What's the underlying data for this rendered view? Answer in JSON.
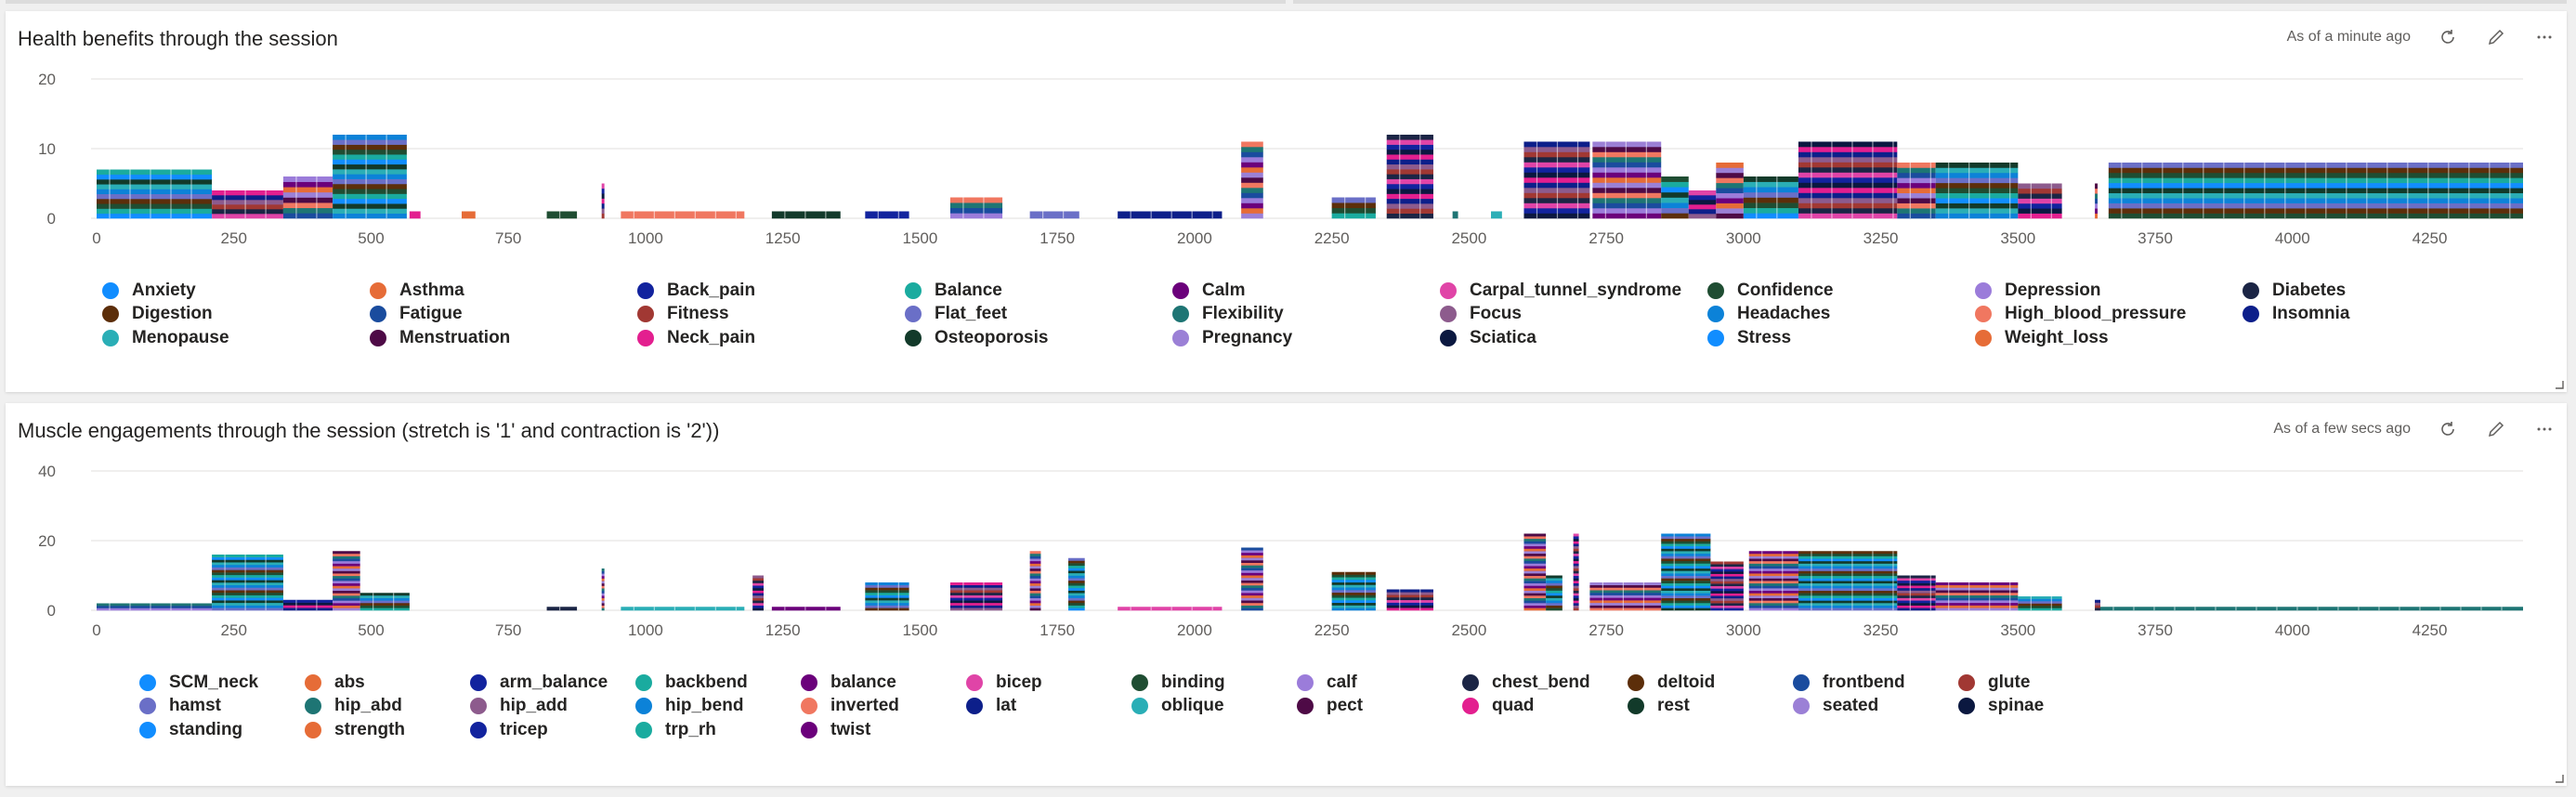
{
  "palette": [
    "#118DFF",
    "#E66C37",
    "#12239E",
    "#1AAB9F",
    "#6B007B",
    "#E044A7",
    "#1F4D32",
    "#9B7CDA",
    "#1B2545",
    "#5C2E0A",
    "#1A4C9E",
    "#A13833",
    "#6A6FC7",
    "#1E7574",
    "#8D5B8D",
    "#0C82D8",
    "#F07760",
    "#0D1F8A",
    "#2AAEB6",
    "#4E0A46",
    "#E31F8F",
    "#123A2A",
    "#9B80D6",
    "#0B1840"
  ],
  "tiles": [
    {
      "title": "Health benefits through the session",
      "timestamp": "As of a minute ago",
      "icons": [
        "refresh-icon",
        "edit-icon",
        "more-options-icon"
      ]
    },
    {
      "title": "Muscle engagements through the session (stretch is '1' and contraction is '2'))",
      "timestamp": "As of a few secs ago",
      "icons": [
        "refresh-icon",
        "edit-icon",
        "more-options-icon"
      ]
    }
  ],
  "chart_data": [
    {
      "type": "bar",
      "stacked": true,
      "x_ticks": [
        0,
        250,
        500,
        750,
        1000,
        1250,
        1500,
        1750,
        2000,
        2250,
        2500,
        2750,
        3000,
        3250,
        3500,
        3750,
        4000,
        4250
      ],
      "xlim": [
        0,
        4420
      ],
      "y_ticks": [
        0,
        10,
        20
      ],
      "ylim": [
        0,
        20
      ],
      "grid": true,
      "legend_position": "bottom",
      "series_names": [
        "Anxiety",
        "Asthma",
        "Back_pain",
        "Balance",
        "Calm",
        "Carpal_tunnel_syndrome",
        "Confidence",
        "Depression",
        "Diabetes",
        "Digestion",
        "Fatigue",
        "Fitness",
        "Flat_feet",
        "Flexibility",
        "Focus",
        "Headaches",
        "High_blood_pressure",
        "Insomnia",
        "Menopause",
        "Menstruation",
        "Neck_pain",
        "Osteoporosis",
        "Pregnancy",
        "Sciatica",
        "Stress",
        "Weight_loss"
      ],
      "segments": [
        {
          "x0": 0,
          "x1": 210,
          "total": 7
        },
        {
          "x0": 210,
          "x1": 340,
          "total": 4
        },
        {
          "x0": 340,
          "x1": 430,
          "total": 6
        },
        {
          "x0": 430,
          "x1": 565,
          "total": 12
        },
        {
          "x0": 570,
          "x1": 590,
          "total": 1
        },
        {
          "x0": 665,
          "x1": 690,
          "total": 1
        },
        {
          "x0": 820,
          "x1": 875,
          "total": 1
        },
        {
          "x0": 920,
          "x1": 925,
          "total": 5
        },
        {
          "x0": 955,
          "x1": 1180,
          "total": 1
        },
        {
          "x0": 1230,
          "x1": 1355,
          "total": 1
        },
        {
          "x0": 1400,
          "x1": 1480,
          "total": 1
        },
        {
          "x0": 1555,
          "x1": 1650,
          "total": 3
        },
        {
          "x0": 1700,
          "x1": 1790,
          "total": 1
        },
        {
          "x0": 1860,
          "x1": 2050,
          "total": 1
        },
        {
          "x0": 2085,
          "x1": 2125,
          "total": 11
        },
        {
          "x0": 2250,
          "x1": 2330,
          "total": 3
        },
        {
          "x0": 2350,
          "x1": 2435,
          "total": 12
        },
        {
          "x0": 2470,
          "x1": 2480,
          "total": 1
        },
        {
          "x0": 2540,
          "x1": 2560,
          "total": 1
        },
        {
          "x0": 2600,
          "x1": 2720,
          "total": 11
        },
        {
          "x0": 2725,
          "x1": 2850,
          "total": 11
        },
        {
          "x0": 2850,
          "x1": 2900,
          "total": 6
        },
        {
          "x0": 2900,
          "x1": 2950,
          "total": 4
        },
        {
          "x0": 2950,
          "x1": 3000,
          "total": 8
        },
        {
          "x0": 3000,
          "x1": 3100,
          "total": 6
        },
        {
          "x0": 3100,
          "x1": 3280,
          "total": 11
        },
        {
          "x0": 3280,
          "x1": 3350,
          "total": 8
        },
        {
          "x0": 3350,
          "x1": 3500,
          "total": 8
        },
        {
          "x0": 3500,
          "x1": 3580,
          "total": 5
        },
        {
          "x0": 3640,
          "x1": 3645,
          "total": 5
        },
        {
          "x0": 3665,
          "x1": 4420,
          "total": 8
        }
      ]
    },
    {
      "type": "bar",
      "stacked": true,
      "x_ticks": [
        0,
        250,
        500,
        750,
        1000,
        1250,
        1500,
        1750,
        2000,
        2250,
        2500,
        2750,
        3000,
        3250,
        3500,
        3750,
        4000,
        4250
      ],
      "xlim": [
        0,
        4420
      ],
      "y_ticks": [
        0,
        20,
        40
      ],
      "ylim": [
        0,
        40
      ],
      "grid": true,
      "legend_position": "bottom",
      "series_names": [
        "SCM_neck",
        "abs",
        "arm_balance",
        "backbend",
        "balance",
        "bicep",
        "binding",
        "calf",
        "chest_bend",
        "deltoid",
        "frontbend",
        "glute",
        "hamst",
        "hip_abd",
        "hip_add",
        "hip_bend",
        "inverted",
        "lat",
        "oblique",
        "pect",
        "quad",
        "rest",
        "seated",
        "spinae",
        "standing",
        "strength",
        "tricep",
        "trp_rh",
        "twist"
      ],
      "segments": [
        {
          "x0": 0,
          "x1": 210,
          "total": 2
        },
        {
          "x0": 210,
          "x1": 340,
          "total": 16
        },
        {
          "x0": 340,
          "x1": 430,
          "total": 3
        },
        {
          "x0": 430,
          "x1": 480,
          "total": 17
        },
        {
          "x0": 480,
          "x1": 570,
          "total": 5
        },
        {
          "x0": 820,
          "x1": 875,
          "total": 1
        },
        {
          "x0": 920,
          "x1": 925,
          "total": 12
        },
        {
          "x0": 955,
          "x1": 1180,
          "total": 1
        },
        {
          "x0": 1195,
          "x1": 1215,
          "total": 10
        },
        {
          "x0": 1230,
          "x1": 1355,
          "total": 1
        },
        {
          "x0": 1400,
          "x1": 1480,
          "total": 8
        },
        {
          "x0": 1555,
          "x1": 1650,
          "total": 8
        },
        {
          "x0": 1700,
          "x1": 1720,
          "total": 17
        },
        {
          "x0": 1770,
          "x1": 1800,
          "total": 15
        },
        {
          "x0": 1860,
          "x1": 2050,
          "total": 1
        },
        {
          "x0": 2085,
          "x1": 2125,
          "total": 18
        },
        {
          "x0": 2250,
          "x1": 2330,
          "total": 11
        },
        {
          "x0": 2350,
          "x1": 2435,
          "total": 6
        },
        {
          "x0": 2600,
          "x1": 2640,
          "total": 22
        },
        {
          "x0": 2640,
          "x1": 2670,
          "total": 10
        },
        {
          "x0": 2690,
          "x1": 2700,
          "total": 22
        },
        {
          "x0": 2720,
          "x1": 2850,
          "total": 8
        },
        {
          "x0": 2850,
          "x1": 2940,
          "total": 22
        },
        {
          "x0": 2940,
          "x1": 3000,
          "total": 14
        },
        {
          "x0": 3010,
          "x1": 3100,
          "total": 17
        },
        {
          "x0": 3100,
          "x1": 3280,
          "total": 17
        },
        {
          "x0": 3280,
          "x1": 3350,
          "total": 10
        },
        {
          "x0": 3350,
          "x1": 3500,
          "total": 8
        },
        {
          "x0": 3500,
          "x1": 3580,
          "total": 4
        },
        {
          "x0": 3640,
          "x1": 3650,
          "total": 3
        },
        {
          "x0": 3650,
          "x1": 4420,
          "total": 1
        }
      ]
    }
  ]
}
